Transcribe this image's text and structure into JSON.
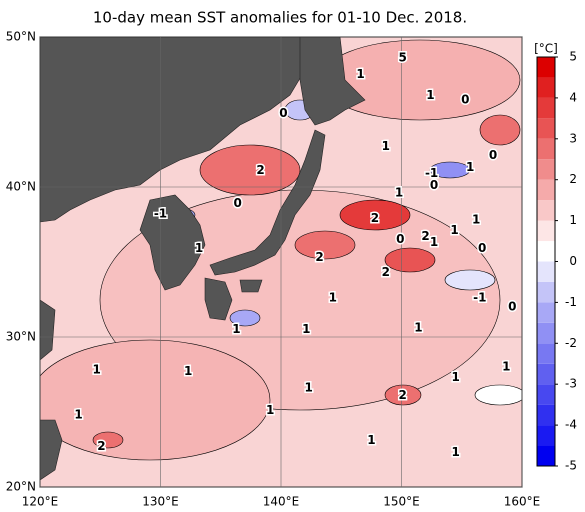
{
  "chart_data": {
    "type": "map",
    "title": "10-day mean SST anomalies for 01-10 Dec. 2018.",
    "xlim": [
      120,
      160
    ],
    "ylim": [
      20,
      50
    ],
    "xticks": [
      {
        "value": 120,
        "label": "120°E"
      },
      {
        "value": 130,
        "label": "130°E"
      },
      {
        "value": 140,
        "label": "140°E"
      },
      {
        "value": 150,
        "label": "150°E"
      },
      {
        "value": 160,
        "label": "160°E"
      }
    ],
    "yticks": [
      {
        "value": 20,
        "label": "20°N"
      },
      {
        "value": 30,
        "label": "30°N"
      },
      {
        "value": 40,
        "label": "40°N"
      },
      {
        "value": 50,
        "label": "50°N"
      }
    ],
    "grid": true,
    "colorbar": {
      "unit": "[°C]",
      "clim": [
        -5,
        5
      ],
      "ticks": [
        5,
        4,
        3,
        2,
        1,
        0,
        -1,
        -2,
        -3,
        -4,
        -5
      ],
      "colors": [
        "#0000f0",
        "#1a1af2",
        "#3030f0",
        "#4848f0",
        "#6060f0",
        "#7878f2",
        "#9090f4",
        "#a8a8f6",
        "#c4c4f8",
        "#e4e4fc",
        "#ffffff",
        "#fde6e6",
        "#f9c8c8",
        "#f5aaaa",
        "#f08c8c",
        "#ec7070",
        "#e85454",
        "#e43a3a",
        "#e02020",
        "#dc0000"
      ]
    },
    "contour_labels": [
      {
        "text": "1",
        "lon": 146.6,
        "lat": 47.5
      },
      {
        "text": "5",
        "lon": 150.1,
        "lat": 48.6
      },
      {
        "text": "1",
        "lon": 152.4,
        "lat": 46.1
      },
      {
        "text": "0",
        "lon": 155.3,
        "lat": 45.8
      },
      {
        "text": "0",
        "lon": 140.2,
        "lat": 44.9
      },
      {
        "text": "1",
        "lon": 148.7,
        "lat": 42.7
      },
      {
        "text": "0",
        "lon": 157.6,
        "lat": 42.1
      },
      {
        "text": "2",
        "lon": 138.3,
        "lat": 41.1
      },
      {
        "text": "-1",
        "lon": 152.5,
        "lat": 40.9
      },
      {
        "text": "0",
        "lon": 152.7,
        "lat": 40.1
      },
      {
        "text": "1",
        "lon": 155.7,
        "lat": 41.3
      },
      {
        "text": "1",
        "lon": 149.8,
        "lat": 39.6
      },
      {
        "text": "-1",
        "lon": 130,
        "lat": 38.2
      },
      {
        "text": "0",
        "lon": 136.4,
        "lat": 38.9
      },
      {
        "text": "2",
        "lon": 147.8,
        "lat": 37.9
      },
      {
        "text": "1",
        "lon": 156.2,
        "lat": 37.8
      },
      {
        "text": "2",
        "lon": 152,
        "lat": 36.7
      },
      {
        "text": "0",
        "lon": 149.9,
        "lat": 36.5
      },
      {
        "text": "1",
        "lon": 154.4,
        "lat": 37.1
      },
      {
        "text": "1",
        "lon": 152.7,
        "lat": 36.3
      },
      {
        "text": "0",
        "lon": 156.7,
        "lat": 35.9
      },
      {
        "text": "1",
        "lon": 133.2,
        "lat": 35.9
      },
      {
        "text": "2",
        "lon": 143.2,
        "lat": 35.3
      },
      {
        "text": "2",
        "lon": 148.7,
        "lat": 34.3
      },
      {
        "text": "-1",
        "lon": 156.5,
        "lat": 32.6
      },
      {
        "text": "0",
        "lon": 159.2,
        "lat": 32
      },
      {
        "text": "1",
        "lon": 144.3,
        "lat": 32.6
      },
      {
        "text": "1",
        "lon": 136.3,
        "lat": 30.5
      },
      {
        "text": "1",
        "lon": 151.4,
        "lat": 30.6
      },
      {
        "text": "1",
        "lon": 142.1,
        "lat": 30.5
      },
      {
        "text": "1",
        "lon": 124.7,
        "lat": 27.8
      },
      {
        "text": "1",
        "lon": 132.3,
        "lat": 27.7
      },
      {
        "text": "1",
        "lon": 154.5,
        "lat": 27.3
      },
      {
        "text": "1",
        "lon": 158.7,
        "lat": 28
      },
      {
        "text": "1",
        "lon": 142.3,
        "lat": 26.6
      },
      {
        "text": "2",
        "lon": 150.1,
        "lat": 26.1
      },
      {
        "text": "1",
        "lon": 139.1,
        "lat": 25.1
      },
      {
        "text": "1",
        "lon": 123.2,
        "lat": 24.8
      },
      {
        "text": "2",
        "lon": 125.1,
        "lat": 22.7
      },
      {
        "text": "1",
        "lon": 147.5,
        "lat": 23.1
      },
      {
        "text": "1",
        "lon": 154.5,
        "lat": 22.3
      }
    ]
  }
}
